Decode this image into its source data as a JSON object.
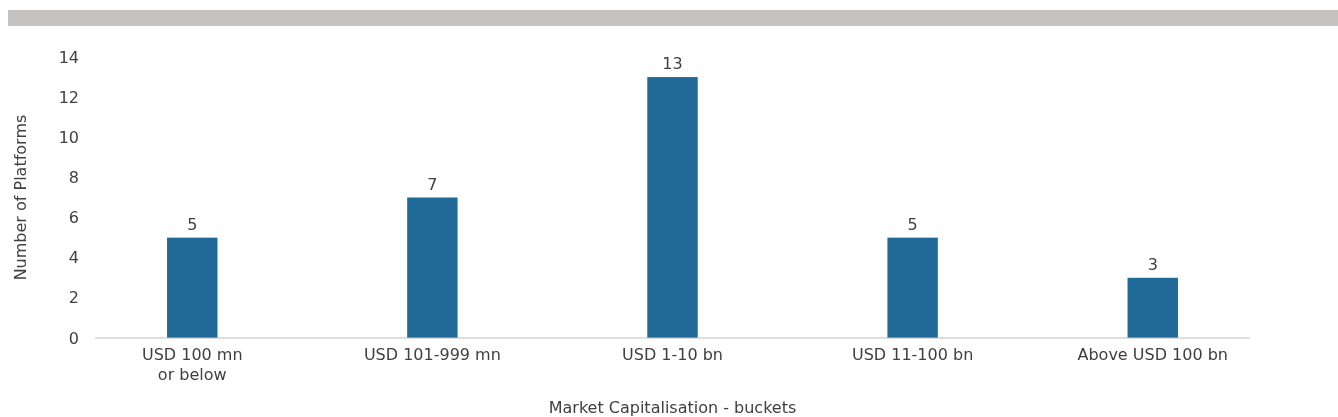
{
  "chart_data": {
    "type": "bar",
    "xlabel": "Market Capitalisation - buckets",
    "ylabel": "Number of Platforms",
    "categories": [
      "USD 100 mn or below",
      "USD 101-999 mn",
      "USD 1-10 bn",
      "USD 11-100 bn",
      "Above USD 100 bn"
    ],
    "values": [
      5,
      7,
      13,
      5,
      3
    ],
    "color": "#216a98",
    "ylim": [
      0,
      14
    ],
    "yticks": [
      0,
      2,
      4,
      6,
      8,
      10,
      12,
      14
    ],
    "grid": false,
    "data_labels": true
  }
}
